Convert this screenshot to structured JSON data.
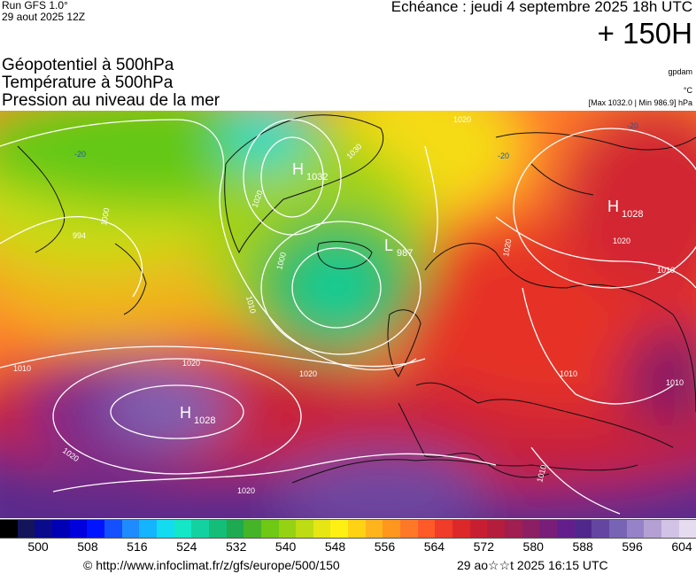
{
  "header": {
    "run": "Run GFS 1.0°",
    "run_date": "29 aout 2025 12Z",
    "valid_time": "Echéance : jeudi 4 septembre 2025 18h UTC",
    "lead": "+ 150H"
  },
  "fields": [
    {
      "label": "Géopotentiel à 500hPa",
      "unit": "gpdam"
    },
    {
      "label": "Température à 500hPa",
      "unit": "°C"
    },
    {
      "label": "Pression au niveau de la mer",
      "unit": "[Max 1032.0 | Min 986.9] hPa"
    }
  ],
  "map": {
    "pressure_centers": [
      {
        "type": "H",
        "value": "1032"
      },
      {
        "type": "L",
        "value": "987"
      },
      {
        "type": "H",
        "value": "1028"
      },
      {
        "type": "H",
        "value": "1028"
      }
    ],
    "isobar_labels": [
      "1020",
      "1020",
      "1030",
      "1000",
      "994",
      "1000",
      "1010",
      "1010",
      "1020",
      "1020",
      "1010",
      "1020",
      "1020",
      "1010",
      "1020",
      "1010",
      "1010",
      "1020"
    ],
    "temp_labels": [
      "-20",
      "-20",
      "-20"
    ]
  },
  "colorbar": {
    "colors": [
      "#000000",
      "#14145a",
      "#0a0a8c",
      "#0000b4",
      "#0000dc",
      "#0014ff",
      "#1450ff",
      "#1e8cff",
      "#14b4ff",
      "#14dcf0",
      "#14e6c8",
      "#14d2a0",
      "#14be78",
      "#1eaa50",
      "#46b428",
      "#6ec814",
      "#96d214",
      "#bedc14",
      "#e6e614",
      "#fff014",
      "#ffd214",
      "#ffb41e",
      "#ff961e",
      "#ff7828",
      "#ff5a28",
      "#f03c28",
      "#dc2828",
      "#c81e32",
      "#b41e3c",
      "#a01e50",
      "#8c1e64",
      "#781e78",
      "#641e8c",
      "#50288c",
      "#6446a0",
      "#7864b4",
      "#9682c8",
      "#b4a0d2",
      "#d2c3e6",
      "#e6dcf0"
    ],
    "ticks": [
      "500",
      "508",
      "516",
      "524",
      "532",
      "540",
      "548",
      "556",
      "564",
      "572",
      "580",
      "588",
      "596",
      "604"
    ]
  },
  "footer": {
    "url": "© http://www.infoclimat.fr/z/gfs/europe/500/150",
    "date": "29 ao☆☆t 2025 16:15 UTC"
  }
}
